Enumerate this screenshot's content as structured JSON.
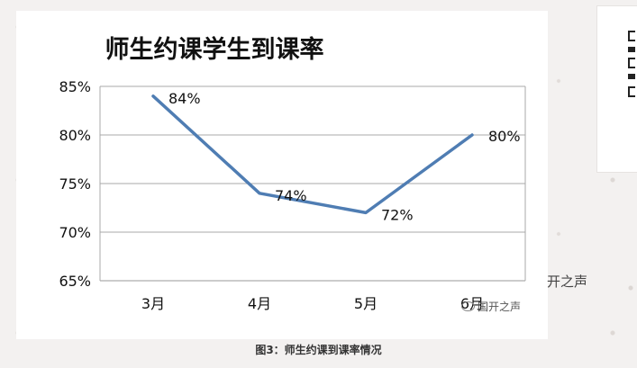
{
  "chart_data": {
    "type": "line",
    "title": "师生约课学生到课率",
    "categories": [
      "3月",
      "4月",
      "5月",
      "6月"
    ],
    "values": [
      84,
      74,
      72,
      80
    ],
    "value_labels": [
      "84%",
      "74%",
      "72%",
      "80%"
    ],
    "ylim": [
      65,
      85
    ],
    "yticks": [
      "65%",
      "70%",
      "75%",
      "80%",
      "85%"
    ],
    "grid": true,
    "legend": "none",
    "line_color": "#4f7db3"
  },
  "caption": "图3：师生约课到课率情况",
  "watermark": {
    "side_text": "开之声",
    "badge_text": "国开之声"
  }
}
